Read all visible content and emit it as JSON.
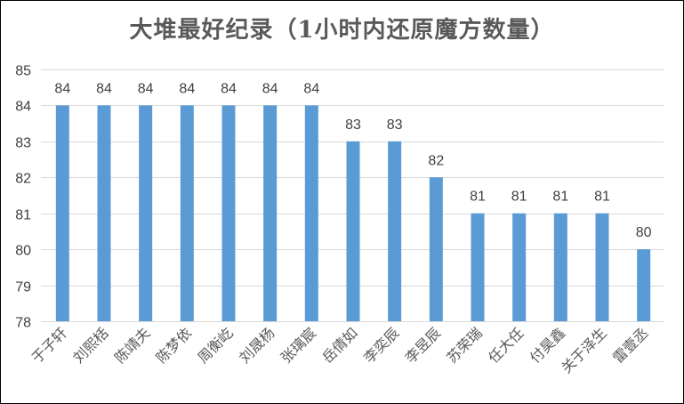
{
  "chart_data": {
    "type": "bar",
    "title": "大堆最好纪录（1小时内还原魔方数量）",
    "xlabel": "",
    "ylabel": "",
    "categories": [
      "于子轩",
      "刘熙栝",
      "陈靖夫",
      "陈梦依",
      "周衡屹",
      "刘晟杨",
      "张璃宸",
      "岳倩如",
      "李奕辰",
      "李昱辰",
      "苏荣瑞",
      "任大任",
      "付昊鑫",
      "关于泽生",
      "雷壹丞"
    ],
    "values": [
      84,
      84,
      84,
      84,
      84,
      84,
      84,
      83,
      83,
      82,
      81,
      81,
      81,
      81,
      80
    ],
    "ylim": [
      78,
      85
    ],
    "yticks": [
      78,
      79,
      80,
      81,
      82,
      83,
      84,
      85
    ],
    "grid": true,
    "legend": "none",
    "bar_color": "#5B9BD5"
  }
}
